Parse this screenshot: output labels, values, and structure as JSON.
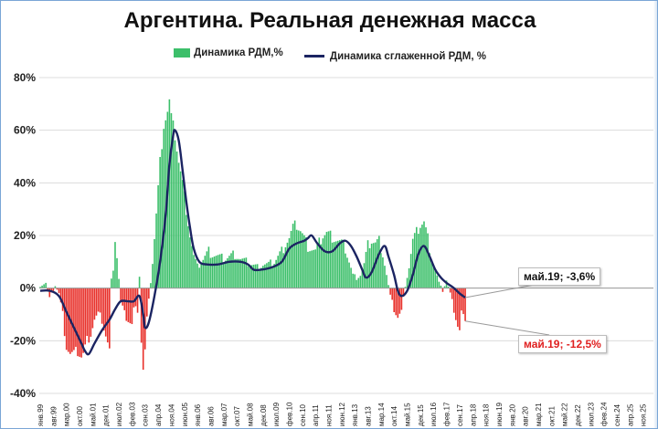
{
  "chart_data": {
    "type": "bar",
    "title": "Аргентина. Реальная денежная масса",
    "legend": [
      {
        "label": "Динамика РДМ,%",
        "color": "#3cbf6a",
        "kind": "bar"
      },
      {
        "label": "Динамика сглаженной РДМ, %",
        "color": "#1b2462",
        "kind": "line"
      }
    ],
    "yticks": [
      "80%",
      "60%",
      "40%",
      "20%",
      "0%",
      "-20%",
      "-40%"
    ],
    "ylim": [
      -40,
      80
    ],
    "grid": true,
    "positive_color": "#3cbf6a",
    "negative_color": "#e8302a",
    "line_color": "#1b2462",
    "xticks": [
      "янв.99",
      "авг.99",
      "мар.00",
      "окт.00",
      "май.01",
      "дек.01",
      "июл.02",
      "фев.03",
      "сен.03",
      "апр.04",
      "ноя.04",
      "июн.05",
      "янв.06",
      "авг.06",
      "мар.07",
      "окт.07",
      "май.08",
      "дек.08",
      "июл.09",
      "фев.10",
      "сен.10",
      "апр.11",
      "ноя.11",
      "июн.12",
      "янв.13",
      "авг.13",
      "мар.14",
      "окт.14",
      "май.15",
      "дек.15",
      "июл.16",
      "фев.17",
      "сен.17",
      "апр.18",
      "ноя.18",
      "июн.19",
      "янв.20",
      "авг.20",
      "мар.21",
      "окт.21",
      "май.22",
      "дек.22",
      "июл.23",
      "фев.24",
      "сен.24",
      "апр.25",
      "ноя.25"
    ],
    "bar_anchors": [
      [
        0,
        1
      ],
      [
        3,
        2
      ],
      [
        5,
        -4
      ],
      [
        8,
        1
      ],
      [
        10,
        -2
      ],
      [
        12,
        -10
      ],
      [
        14,
        -22
      ],
      [
        16,
        -25
      ],
      [
        18,
        -25
      ],
      [
        20,
        -24
      ],
      [
        22,
        -26
      ],
      [
        23,
        -25
      ],
      [
        25,
        -20
      ],
      [
        27,
        -17
      ],
      [
        29,
        -12
      ],
      [
        31,
        -10
      ],
      [
        33,
        -12
      ],
      [
        35,
        -18
      ],
      [
        37,
        -24
      ],
      [
        38,
        3
      ],
      [
        39,
        8
      ],
      [
        40,
        19
      ],
      [
        41,
        12
      ],
      [
        43,
        -5
      ],
      [
        45,
        -10
      ],
      [
        47,
        -12
      ],
      [
        49,
        -14
      ],
      [
        50,
        -8
      ],
      [
        52,
        -8
      ],
      [
        53,
        5
      ],
      [
        54,
        -20
      ],
      [
        55,
        -31
      ],
      [
        56,
        -24
      ],
      [
        57,
        -12
      ],
      [
        58,
        -5
      ],
      [
        60,
        10
      ],
      [
        62,
        28
      ],
      [
        64,
        48
      ],
      [
        66,
        62
      ],
      [
        68,
        67
      ],
      [
        69,
        71
      ],
      [
        70,
        65
      ],
      [
        72,
        58
      ],
      [
        74,
        48
      ],
      [
        76,
        40
      ],
      [
        78,
        30
      ],
      [
        80,
        20
      ],
      [
        82,
        12
      ],
      [
        84,
        8
      ],
      [
        86,
        10
      ],
      [
        88,
        12
      ],
      [
        90,
        14
      ],
      [
        92,
        13
      ],
      [
        95,
        12
      ],
      [
        98,
        11
      ],
      [
        101,
        12
      ],
      [
        104,
        13
      ],
      [
        107,
        11
      ],
      [
        110,
        10
      ],
      [
        113,
        9
      ],
      [
        116,
        8
      ],
      [
        119,
        9
      ],
      [
        122,
        9
      ],
      [
        125,
        10
      ],
      [
        127,
        12
      ],
      [
        129,
        14
      ],
      [
        131,
        17
      ],
      [
        133,
        19
      ],
      [
        135,
        23
      ],
      [
        137,
        24
      ],
      [
        139,
        22
      ],
      [
        141,
        19
      ],
      [
        143,
        16
      ],
      [
        145,
        15
      ],
      [
        147,
        14
      ],
      [
        149,
        17
      ],
      [
        151,
        20
      ],
      [
        153,
        21
      ],
      [
        155,
        20
      ],
      [
        157,
        19
      ],
      [
        159,
        18
      ],
      [
        161,
        17
      ],
      [
        163,
        15
      ],
      [
        165,
        10
      ],
      [
        167,
        5
      ],
      [
        169,
        4
      ],
      [
        171,
        5
      ],
      [
        173,
        9
      ],
      [
        175,
        16
      ],
      [
        177,
        18
      ],
      [
        179,
        17
      ],
      [
        181,
        18
      ],
      [
        183,
        13
      ],
      [
        185,
        5
      ],
      [
        187,
        -3
      ],
      [
        189,
        -8
      ],
      [
        191,
        -11
      ],
      [
        193,
        -9
      ],
      [
        195,
        1
      ],
      [
        197,
        8
      ],
      [
        199,
        18
      ],
      [
        201,
        21
      ],
      [
        203,
        24
      ],
      [
        205,
        25
      ],
      [
        207,
        19
      ],
      [
        209,
        12
      ],
      [
        211,
        7
      ],
      [
        213,
        2
      ],
      [
        215,
        -1
      ],
      [
        217,
        3
      ],
      [
        219,
        -2
      ],
      [
        221,
        -8
      ],
      [
        223,
        -14
      ],
      [
        224,
        -16
      ],
      [
        225,
        -9
      ],
      [
        226,
        -11
      ],
      [
        227,
        -12.5
      ]
    ],
    "line_anchors": [
      [
        0,
        -1
      ],
      [
        5,
        -1
      ],
      [
        10,
        -3
      ],
      [
        14,
        -9
      ],
      [
        18,
        -15
      ],
      [
        22,
        -21
      ],
      [
        24,
        -24
      ],
      [
        26,
        -25
      ],
      [
        29,
        -21
      ],
      [
        33,
        -16
      ],
      [
        37,
        -12
      ],
      [
        40,
        -8
      ],
      [
        43,
        -5
      ],
      [
        47,
        -5
      ],
      [
        50,
        -5
      ],
      [
        53,
        -3
      ],
      [
        55,
        -10
      ],
      [
        56,
        -15
      ],
      [
        58,
        -13
      ],
      [
        61,
        -3
      ],
      [
        64,
        10
      ],
      [
        67,
        28
      ],
      [
        69,
        47
      ],
      [
        71,
        58
      ],
      [
        72,
        60
      ],
      [
        74,
        56
      ],
      [
        76,
        45
      ],
      [
        78,
        33
      ],
      [
        80,
        23
      ],
      [
        82,
        15
      ],
      [
        85,
        10
      ],
      [
        89,
        9
      ],
      [
        95,
        9
      ],
      [
        101,
        10
      ],
      [
        107,
        10
      ],
      [
        111,
        9
      ],
      [
        114,
        7
      ],
      [
        118,
        7
      ],
      [
        124,
        8
      ],
      [
        129,
        10
      ],
      [
        133,
        15
      ],
      [
        137,
        17
      ],
      [
        141,
        18
      ],
      [
        143,
        19
      ],
      [
        145,
        20
      ],
      [
        148,
        17
      ],
      [
        152,
        14
      ],
      [
        156,
        14
      ],
      [
        160,
        17
      ],
      [
        163,
        18
      ],
      [
        166,
        16
      ],
      [
        169,
        12
      ],
      [
        172,
        7
      ],
      [
        174,
        4
      ],
      [
        177,
        6
      ],
      [
        181,
        13
      ],
      [
        184,
        16
      ],
      [
        186,
        12
      ],
      [
        189,
        5
      ],
      [
        191,
        -1
      ],
      [
        193,
        -3
      ],
      [
        196,
        -1
      ],
      [
        199,
        5
      ],
      [
        202,
        13
      ],
      [
        205,
        16
      ],
      [
        208,
        12
      ],
      [
        211,
        7
      ],
      [
        214,
        4
      ],
      [
        217,
        2
      ],
      [
        221,
        0
      ],
      [
        224,
        -2
      ],
      [
        227,
        -3.6
      ]
    ],
    "annotations": [
      {
        "label": "май.19; -3,6%",
        "month_index": 227,
        "value": -3.6
      },
      {
        "label": "май.19; -12,5%",
        "month_index": 227,
        "value": -12.5
      }
    ]
  }
}
